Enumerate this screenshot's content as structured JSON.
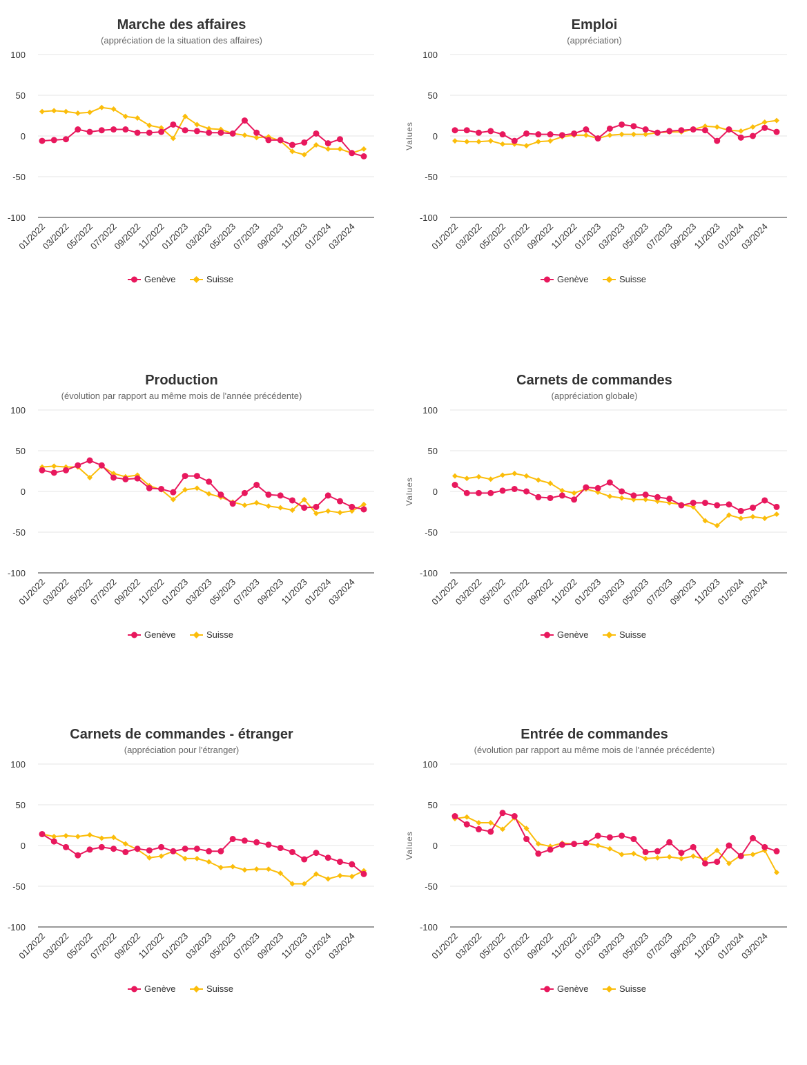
{
  "colors": {
    "geneve": "#e8185d",
    "suisse": "#fbbd0a"
  },
  "chart_data": [
    {
      "type": "line",
      "title": "Marche des affaires",
      "subtitle": "(appréciation de la situation des affaires)",
      "ylabel": "",
      "ylim": [
        -100,
        100
      ],
      "yticks": [
        100,
        50,
        0,
        -50,
        -100
      ],
      "x": [
        "01/2022",
        "02/2022",
        "03/2022",
        "04/2022",
        "05/2022",
        "06/2022",
        "07/2022",
        "08/2022",
        "09/2022",
        "10/2022",
        "11/2022",
        "12/2022",
        "01/2023",
        "02/2023",
        "03/2023",
        "04/2023",
        "05/2023",
        "06/2023",
        "07/2023",
        "08/2023",
        "09/2023",
        "10/2023",
        "11/2023",
        "12/2023",
        "01/2024",
        "02/2024",
        "03/2024",
        "04/2024"
      ],
      "xtick_labels": [
        "01/2022",
        "03/2022",
        "05/2022",
        "07/2022",
        "09/2022",
        "11/2022",
        "01/2023",
        "03/2023",
        "05/2023",
        "07/2023",
        "09/2023",
        "11/2023",
        "01/2024",
        "03/2024"
      ],
      "series": [
        {
          "name": "Genève",
          "values": [
            -6,
            -5,
            -4,
            8,
            5,
            7,
            8,
            8,
            4,
            4,
            5,
            14,
            7,
            6,
            4,
            4,
            3,
            19,
            4,
            -5,
            -5,
            -11,
            -8,
            3,
            -9,
            -4,
            -21,
            -25
          ]
        },
        {
          "name": "Suisse",
          "values": [
            30,
            31,
            30,
            28,
            29,
            35,
            33,
            24,
            22,
            13,
            10,
            -3,
            24,
            14,
            9,
            8,
            3,
            1,
            -2,
            -1,
            -6,
            -19,
            -23,
            -11,
            -16,
            -16,
            -21,
            -16
          ]
        }
      ],
      "legend": "bottom-center",
      "grid": true
    },
    {
      "type": "line",
      "title": "Emploi",
      "subtitle": "(appréciation)",
      "ylabel": "Values",
      "ylim": [
        -100,
        100
      ],
      "yticks": [
        100,
        50,
        0,
        -50,
        -100
      ],
      "x": [
        "01/2022",
        "02/2022",
        "03/2022",
        "04/2022",
        "05/2022",
        "06/2022",
        "07/2022",
        "08/2022",
        "09/2022",
        "10/2022",
        "11/2022",
        "12/2022",
        "01/2023",
        "02/2023",
        "03/2023",
        "04/2023",
        "05/2023",
        "06/2023",
        "07/2023",
        "08/2023",
        "09/2023",
        "10/2023",
        "11/2023",
        "12/2023",
        "01/2024",
        "02/2024",
        "03/2024",
        "04/2024"
      ],
      "xtick_labels": [
        "01/2022",
        "03/2022",
        "05/2022",
        "07/2022",
        "09/2022",
        "11/2022",
        "01/2023",
        "03/2023",
        "05/2023",
        "07/2023",
        "09/2023",
        "11/2023",
        "01/2024",
        "03/2024"
      ],
      "series": [
        {
          "name": "Genève",
          "values": [
            7,
            7,
            4,
            6,
            2,
            -6,
            3,
            2,
            2,
            1,
            3,
            8,
            -3,
            9,
            14,
            12,
            8,
            4,
            6,
            7,
            8,
            7,
            -6,
            8,
            -2,
            0,
            10,
            5
          ]
        },
        {
          "name": "Suisse",
          "values": [
            -6,
            -7,
            -7,
            -6,
            -10,
            -10,
            -12,
            -7,
            -6,
            -1,
            1,
            1,
            -3,
            1,
            2,
            2,
            2,
            4,
            5,
            5,
            8,
            12,
            11,
            7,
            6,
            11,
            17,
            19
          ]
        }
      ],
      "legend": "bottom-center",
      "grid": true
    },
    {
      "type": "line",
      "title": "Production",
      "subtitle": "(évolution par rapport au même mois de l'année précédente)",
      "ylabel": "",
      "ylim": [
        -100,
        100
      ],
      "yticks": [
        100,
        50,
        0,
        -50,
        -100
      ],
      "x": [
        "01/2022",
        "02/2022",
        "03/2022",
        "04/2022",
        "05/2022",
        "06/2022",
        "07/2022",
        "08/2022",
        "09/2022",
        "10/2022",
        "11/2022",
        "12/2022",
        "01/2023",
        "02/2023",
        "03/2023",
        "04/2023",
        "05/2023",
        "06/2023",
        "07/2023",
        "08/2023",
        "09/2023",
        "10/2023",
        "11/2023",
        "12/2023",
        "01/2024",
        "02/2024",
        "03/2024",
        "04/2024"
      ],
      "xtick_labels": [
        "01/2022",
        "03/2022",
        "05/2022",
        "07/2022",
        "09/2022",
        "11/2022",
        "01/2023",
        "03/2023",
        "05/2023",
        "07/2023",
        "09/2023",
        "11/2023",
        "01/2024",
        "03/2024"
      ],
      "series": [
        {
          "name": "Genève",
          "values": [
            26,
            23,
            26,
            32,
            38,
            32,
            17,
            15,
            16,
            4,
            3,
            -1,
            19,
            19,
            12,
            -4,
            -15,
            -2,
            8,
            -4,
            -5,
            -11,
            -20,
            -19,
            -5,
            -12,
            -19,
            -22
          ]
        },
        {
          "name": "Suisse",
          "values": [
            30,
            31,
            30,
            30,
            17,
            31,
            22,
            18,
            20,
            7,
            2,
            -10,
            2,
            4,
            -3,
            -7,
            -13,
            -17,
            -14,
            -18,
            -20,
            -23,
            -10,
            -27,
            -24,
            -26,
            -24,
            -16
          ]
        }
      ],
      "legend": "bottom-center",
      "grid": true
    },
    {
      "type": "line",
      "title": "Carnets de commandes",
      "subtitle": "(appréciation globale)",
      "ylabel": "Values",
      "ylim": [
        -100,
        100
      ],
      "yticks": [
        100,
        50,
        0,
        -50,
        -100
      ],
      "x": [
        "01/2022",
        "02/2022",
        "03/2022",
        "04/2022",
        "05/2022",
        "06/2022",
        "07/2022",
        "08/2022",
        "09/2022",
        "10/2022",
        "11/2022",
        "12/2022",
        "01/2023",
        "02/2023",
        "03/2023",
        "04/2023",
        "05/2023",
        "06/2023",
        "07/2023",
        "08/2023",
        "09/2023",
        "10/2023",
        "11/2023",
        "12/2023",
        "01/2024",
        "02/2024",
        "03/2024",
        "04/2024"
      ],
      "xtick_labels": [
        "01/2022",
        "03/2022",
        "05/2022",
        "07/2022",
        "09/2022",
        "11/2022",
        "01/2023",
        "03/2023",
        "05/2023",
        "07/2023",
        "09/2023",
        "11/2023",
        "01/2024",
        "03/2024"
      ],
      "series": [
        {
          "name": "Genève",
          "values": [
            8,
            -2,
            -2,
            -2,
            1,
            3,
            0,
            -7,
            -8,
            -5,
            -10,
            5,
            4,
            11,
            0,
            -5,
            -4,
            -7,
            -9,
            -17,
            -14,
            -14,
            -17,
            -16,
            -24,
            -20,
            -11,
            -19
          ]
        },
        {
          "name": "Suisse",
          "values": [
            19,
            16,
            18,
            15,
            20,
            22,
            19,
            14,
            10,
            1,
            -2,
            3,
            -1,
            -6,
            -8,
            -10,
            -10,
            -12,
            -14,
            -16,
            -19,
            -36,
            -42,
            -29,
            -33,
            -31,
            -33,
            -28
          ]
        }
      ],
      "legend": "bottom-center",
      "grid": true
    },
    {
      "type": "line",
      "title": "Carnets de commandes - étranger",
      "subtitle": "(appréciation pour l'étranger)",
      "ylabel": "",
      "ylim": [
        -100,
        100
      ],
      "yticks": [
        100,
        50,
        0,
        -50,
        -100
      ],
      "x": [
        "01/2022",
        "02/2022",
        "03/2022",
        "04/2022",
        "05/2022",
        "06/2022",
        "07/2022",
        "08/2022",
        "09/2022",
        "10/2022",
        "11/2022",
        "12/2022",
        "01/2023",
        "02/2023",
        "03/2023",
        "04/2023",
        "05/2023",
        "06/2023",
        "07/2023",
        "08/2023",
        "09/2023",
        "10/2023",
        "11/2023",
        "12/2023",
        "01/2024",
        "02/2024",
        "03/2024",
        "04/2024"
      ],
      "xtick_labels": [
        "01/2022",
        "03/2022",
        "05/2022",
        "07/2022",
        "09/2022",
        "11/2022",
        "01/2023",
        "03/2023",
        "05/2023",
        "07/2023",
        "09/2023",
        "11/2023",
        "01/2024",
        "03/2024"
      ],
      "series": [
        {
          "name": "Genève",
          "values": [
            14,
            5,
            -2,
            -12,
            -5,
            -2,
            -4,
            -8,
            -4,
            -6,
            -2,
            -7,
            -4,
            -4,
            -7,
            -7,
            8,
            6,
            4,
            1,
            -3,
            -8,
            -17,
            -9,
            -15,
            -20,
            -23,
            -35
          ]
        },
        {
          "name": "Suisse",
          "values": [
            14,
            11,
            12,
            11,
            13,
            9,
            10,
            2,
            -5,
            -15,
            -13,
            -7,
            -16,
            -16,
            -20,
            -27,
            -26,
            -30,
            -29,
            -29,
            -34,
            -47,
            -47,
            -35,
            -41,
            -37,
            -38,
            -31
          ]
        }
      ],
      "legend": "bottom-center",
      "grid": true
    },
    {
      "type": "line",
      "title": "Entrée de commandes",
      "subtitle": "(évolution par rapport au même mois de l'année précédente)",
      "ylabel": "Values",
      "ylim": [
        -100,
        100
      ],
      "yticks": [
        100,
        50,
        0,
        -50,
        -100
      ],
      "x": [
        "01/2022",
        "02/2022",
        "03/2022",
        "04/2022",
        "05/2022",
        "06/2022",
        "07/2022",
        "08/2022",
        "09/2022",
        "10/2022",
        "11/2022",
        "12/2022",
        "01/2023",
        "02/2023",
        "03/2023",
        "04/2023",
        "05/2023",
        "06/2023",
        "07/2023",
        "08/2023",
        "09/2023",
        "10/2023",
        "11/2023",
        "12/2023",
        "01/2024",
        "02/2024",
        "03/2024",
        "04/2024"
      ],
      "xtick_labels": [
        "01/2022",
        "03/2022",
        "05/2022",
        "07/2022",
        "09/2022",
        "11/2022",
        "01/2023",
        "03/2023",
        "05/2023",
        "07/2023",
        "09/2023",
        "11/2023",
        "01/2024",
        "03/2024"
      ],
      "series": [
        {
          "name": "Genève",
          "values": [
            36,
            26,
            20,
            17,
            40,
            36,
            8,
            -10,
            -5,
            1,
            2,
            3,
            12,
            10,
            12,
            8,
            -8,
            -7,
            4,
            -9,
            -2,
            -22,
            -20,
            0,
            -13,
            9,
            -2,
            -7
          ]
        },
        {
          "name": "Suisse",
          "values": [
            33,
            35,
            28,
            28,
            20,
            34,
            21,
            2,
            -1,
            3,
            2,
            3,
            0,
            -4,
            -11,
            -10,
            -16,
            -15,
            -14,
            -16,
            -13,
            -17,
            -6,
            -22,
            -12,
            -11,
            -6,
            -33
          ]
        }
      ],
      "legend": "bottom-center",
      "grid": true
    }
  ]
}
